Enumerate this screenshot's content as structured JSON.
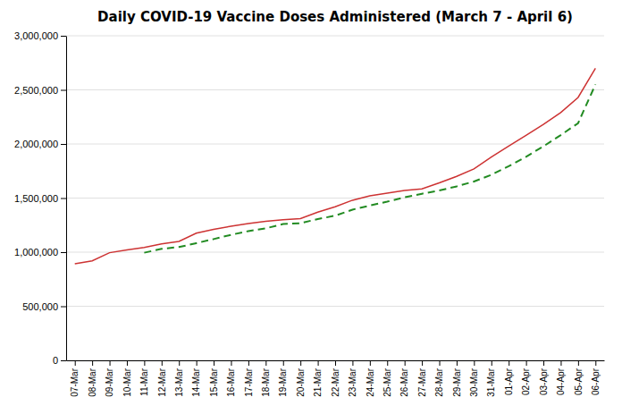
{
  "chart_data": {
    "type": "line",
    "title": "Daily COVID-19 Vaccine Doses Administered (March 7 - April 6)",
    "categories": [
      "07-Mar",
      "08-Mar",
      "09-Mar",
      "10-Mar",
      "11-Mar",
      "12-Mar",
      "13-Mar",
      "14-Mar",
      "15-Mar",
      "16-Mar",
      "17-Mar",
      "18-Mar",
      "19-Mar",
      "20-Mar",
      "21-Mar",
      "22-Mar",
      "23-Mar",
      "24-Mar",
      "25-Mar",
      "26-Mar",
      "27-Mar",
      "28-Mar",
      "29-Mar",
      "30-Mar",
      "31-Mar",
      "01-Apr",
      "02-Apr",
      "03-Apr",
      "04-Apr",
      "05-Apr",
      "06-Apr"
    ],
    "series": [
      {
        "color": "#CD3333",
        "line_style": "solid",
        "values": [
          893000,
          920000,
          995000,
          1020000,
          1043000,
          1077000,
          1100000,
          1175000,
          1210000,
          1240000,
          1265000,
          1285000,
          1300000,
          1310000,
          1370000,
          1420000,
          1480000,
          1520000,
          1545000,
          1570000,
          1585000,
          1640000,
          1700000,
          1770000,
          1880000,
          1980000,
          2080000,
          2180000,
          2290000,
          2430000,
          2700000
        ]
      },
      {
        "color": "#228B22",
        "line_style": "dashed",
        "values": [
          null,
          null,
          null,
          null,
          995000,
          1031000,
          1047000,
          1083000,
          1121000,
          1160000,
          1195000,
          1220000,
          1260000,
          1268000,
          1306000,
          1337000,
          1393000,
          1431000,
          1467000,
          1507000,
          1540000,
          1570000,
          1608000,
          1653000,
          1715000,
          1794000,
          1882000,
          1978000,
          2082000,
          2192000,
          2550000
        ]
      }
    ],
    "ylim": [
      0,
      3000000
    ],
    "yticks": [
      0,
      {
        "value": 500000,
        "label": "500,000"
      },
      {
        "value": 1000000,
        "label": "1,000,000"
      },
      {
        "value": 1500000,
        "label": "1,500,000"
      },
      {
        "value": 2000000,
        "label": "2,000,000"
      },
      {
        "value": 2500000,
        "label": "2,500,000"
      },
      {
        "value": 3000000,
        "label": "3,000,000"
      }
    ],
    "grid": true
  }
}
